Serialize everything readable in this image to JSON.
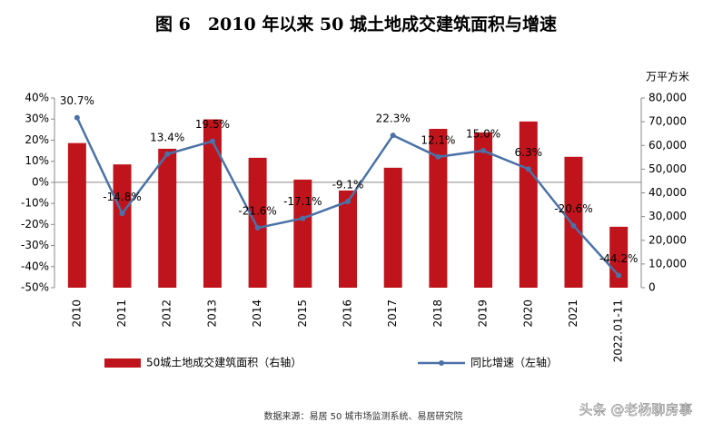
{
  "chart_data": {
    "type": "bar-line",
    "title": "图 6　2010 年以来 50 城土地成交建筑面积与增速",
    "y2_label": "万平方米",
    "source": "数据来源：易居 50 城市场监测系统、易居研究院",
    "watermark": "头条 @老杨聊房事",
    "categories": [
      "2010",
      "2011",
      "2012",
      "2013",
      "2014",
      "2015",
      "2016",
      "2017",
      "2018",
      "2019",
      "2020",
      "2021",
      "2022.01-11"
    ],
    "series": [
      {
        "name": "50城土地成交建筑面积（右轴）",
        "type": "bar",
        "axis": "y2",
        "color": "#c0141c",
        "values": [
          61000,
          52000,
          58600,
          71000,
          54800,
          45600,
          41000,
          50600,
          67000,
          65500,
          70100,
          55200,
          25700
        ]
      },
      {
        "name": "同比增速（左轴）",
        "type": "line",
        "color": "#4a72a8",
        "values": [
          30.7,
          -14.8,
          13.4,
          19.5,
          -21.6,
          -17.1,
          -9.1,
          22.3,
          12.1,
          15.0,
          6.3,
          -20.6,
          -44.2
        ],
        "value_labels": [
          "30.7%",
          "-14.8%",
          "13.4%",
          "19.5%",
          "-21.6%",
          "-17.1%",
          "-9.1%",
          "22.3%",
          "12.1%",
          "15.0%",
          "6.3%",
          "-20.6%",
          "-44.2%"
        ]
      }
    ],
    "ylim": [
      -50,
      40
    ],
    "yticks": [
      {
        "value": -50,
        "label": "-50%"
      },
      {
        "value": -40,
        "label": "-40%"
      },
      {
        "value": -30,
        "label": "-30%"
      },
      {
        "value": -20,
        "label": "-20%"
      },
      {
        "value": -10,
        "label": "-10%"
      },
      {
        "value": 0,
        "label": "0%"
      },
      {
        "value": 10,
        "label": "10%"
      },
      {
        "value": 20,
        "label": "20%"
      },
      {
        "value": 30,
        "label": "30%"
      },
      {
        "value": 40,
        "label": "40%"
      }
    ],
    "y2lim": [
      0,
      80000
    ],
    "y2ticks": [
      0,
      {
        "value": 10000,
        "label": "10,000"
      },
      {
        "value": 20000,
        "label": "20,000"
      },
      {
        "value": 30000,
        "label": "30,000"
      },
      {
        "value": 40000,
        "label": "40,000"
      },
      {
        "value": 50000,
        "label": "50,000"
      },
      {
        "value": 60000,
        "label": "60,000"
      },
      {
        "value": 70000,
        "label": "70,000"
      },
      {
        "value": 80000,
        "label": "80,000"
      }
    ]
  }
}
